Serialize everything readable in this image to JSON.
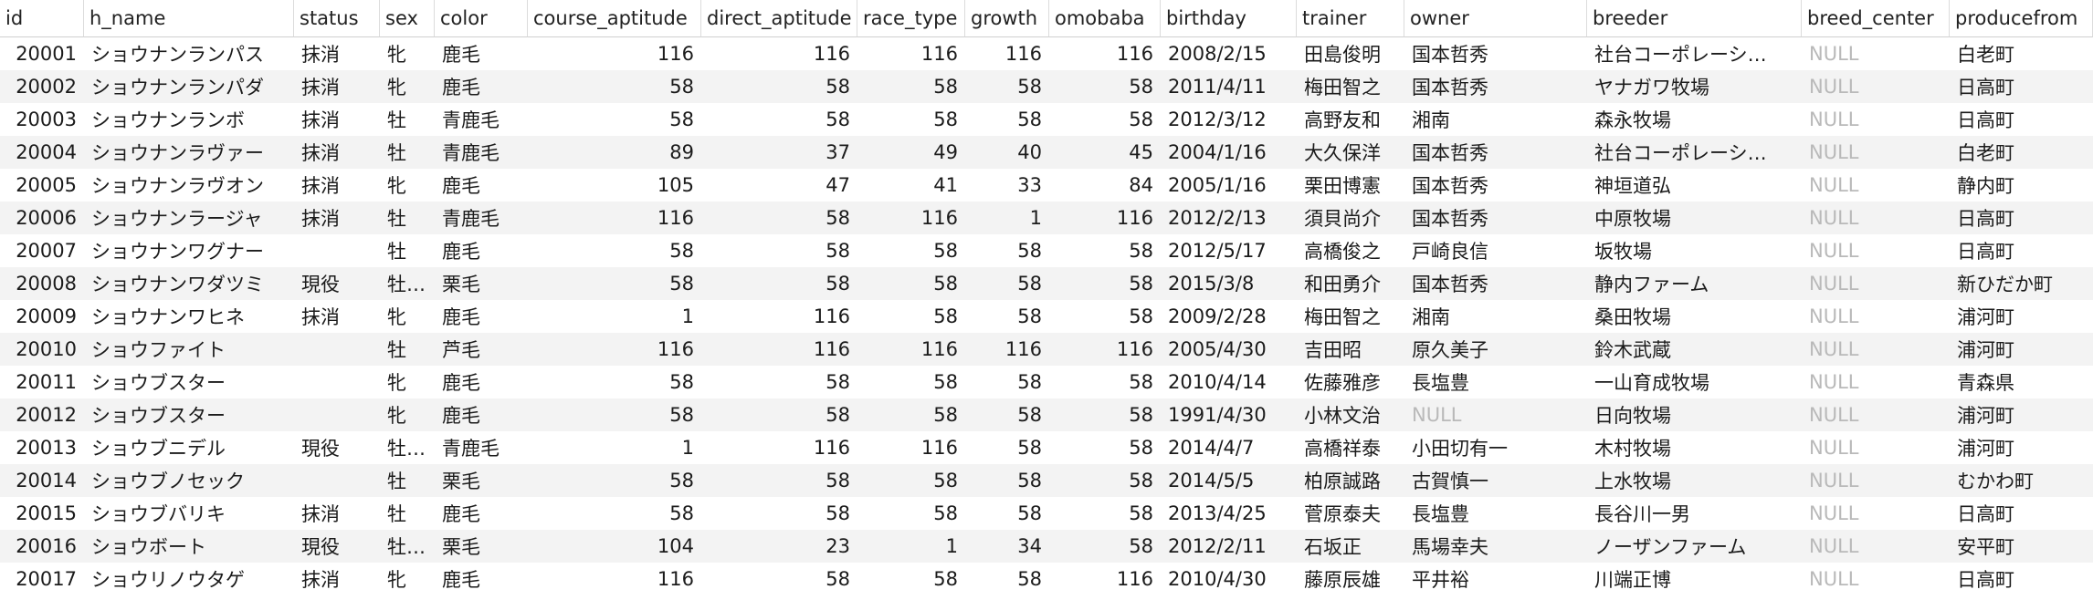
{
  "columns": [
    "id",
    "h_name",
    "status",
    "sex",
    "color",
    "course_aptitude",
    "direct_aptitude",
    "race_type",
    "growth",
    "omobaba",
    "birthday",
    "trainer",
    "owner",
    "breeder",
    "breed_center",
    "producefrom"
  ],
  "numeric_columns": [
    0,
    5,
    6,
    7,
    8,
    9
  ],
  "rows": [
    [
      "20001",
      "ショウナンランパス",
      "抹消",
      "牝",
      "鹿毛",
      "116",
      "116",
      "116",
      "116",
      "116",
      "2008/2/15",
      "田島俊明",
      "国本哲秀",
      "社台コーポレーシ…",
      "NULL",
      "白老町"
    ],
    [
      "20002",
      "ショウナンランパダ",
      "抹消",
      "牝",
      "鹿毛",
      "58",
      "58",
      "58",
      "58",
      "58",
      "2011/4/11",
      "梅田智之",
      "国本哲秀",
      "ヤナガワ牧場",
      "NULL",
      "日高町"
    ],
    [
      "20003",
      "ショウナンランボ",
      "抹消",
      "牡",
      "青鹿毛",
      "58",
      "58",
      "58",
      "58",
      "58",
      "2012/3/12",
      "高野友和",
      "湘南",
      "森永牧場",
      "NULL",
      "日高町"
    ],
    [
      "20004",
      "ショウナンラヴァー",
      "抹消",
      "牡",
      "青鹿毛",
      "89",
      "37",
      "49",
      "40",
      "45",
      "2004/1/16",
      "大久保洋",
      "国本哲秀",
      "社台コーポレーシ…",
      "NULL",
      "白老町"
    ],
    [
      "20005",
      "ショウナンラヴオン",
      "抹消",
      "牝",
      "鹿毛",
      "105",
      "47",
      "41",
      "33",
      "84",
      "2005/1/16",
      "栗田博憲",
      "国本哲秀",
      "神垣道弘",
      "NULL",
      "静内町"
    ],
    [
      "20006",
      "ショウナンラージャ",
      "抹消",
      "牡",
      "青鹿毛",
      "116",
      "58",
      "116",
      "1",
      "116",
      "2012/2/13",
      "須貝尚介",
      "国本哲秀",
      "中原牧場",
      "NULL",
      "日高町"
    ],
    [
      "20007",
      "ショウナンワグナー",
      "",
      "牡",
      "鹿毛",
      "58",
      "58",
      "58",
      "58",
      "58",
      "2012/5/17",
      "高橋俊之",
      "戸崎良信",
      "坂牧場",
      "NULL",
      "日高町"
    ],
    [
      "20008",
      "ショウナンワダツミ",
      "現役",
      "牡…",
      "栗毛",
      "58",
      "58",
      "58",
      "58",
      "58",
      "2015/3/8",
      "和田勇介",
      "国本哲秀",
      "静内ファーム",
      "NULL",
      "新ひだか町"
    ],
    [
      "20009",
      "ショウナンワヒネ",
      "抹消",
      "牝",
      "鹿毛",
      "1",
      "116",
      "58",
      "58",
      "58",
      "2009/2/28",
      "梅田智之",
      "湘南",
      "桑田牧場",
      "NULL",
      "浦河町"
    ],
    [
      "20010",
      "ショウファイト",
      "",
      "牡",
      "芦毛",
      "116",
      "116",
      "116",
      "116",
      "116",
      "2005/4/30",
      "吉田昭",
      "原久美子",
      "鈴木武蔵",
      "NULL",
      "浦河町"
    ],
    [
      "20011",
      "ショウブスター",
      "",
      "牝",
      "鹿毛",
      "58",
      "58",
      "58",
      "58",
      "58",
      "2010/4/14",
      "佐藤雅彦",
      "長塩豊",
      "一山育成牧場",
      "NULL",
      "青森県"
    ],
    [
      "20012",
      "ショウブスター",
      "",
      "牝",
      "鹿毛",
      "58",
      "58",
      "58",
      "58",
      "58",
      "1991/4/30",
      "小林文治",
      "NULL",
      "日向牧場",
      "NULL",
      "浦河町"
    ],
    [
      "20013",
      "ショウブニデル",
      "現役",
      "牡…",
      "青鹿毛",
      "1",
      "116",
      "116",
      "58",
      "58",
      "2014/4/7",
      "高橋祥泰",
      "小田切有一",
      "木村牧場",
      "NULL",
      "浦河町"
    ],
    [
      "20014",
      "ショウブノセック",
      "",
      "牡",
      "栗毛",
      "58",
      "58",
      "58",
      "58",
      "58",
      "2014/5/5",
      "柏原誠路",
      "古賀慎一",
      "上水牧場",
      "NULL",
      "むかわ町"
    ],
    [
      "20015",
      "ショウブバリキ",
      "抹消",
      "牡",
      "鹿毛",
      "58",
      "58",
      "58",
      "58",
      "58",
      "2013/4/25",
      "菅原泰夫",
      "長塩豊",
      "長谷川一男",
      "NULL",
      "日高町"
    ],
    [
      "20016",
      "ショウボート",
      "現役",
      "牡…",
      "栗毛",
      "104",
      "23",
      "1",
      "34",
      "58",
      "2012/2/11",
      "石坂正",
      "馬場幸夫",
      "ノーザンファーム",
      "NULL",
      "安平町"
    ],
    [
      "20017",
      "ショウリノウタゲ",
      "抹消",
      "牝",
      "鹿毛",
      "116",
      "58",
      "58",
      "58",
      "116",
      "2010/4/30",
      "藤原辰雄",
      "平井裕",
      "川端正博",
      "NULL",
      "日高町"
    ]
  ]
}
